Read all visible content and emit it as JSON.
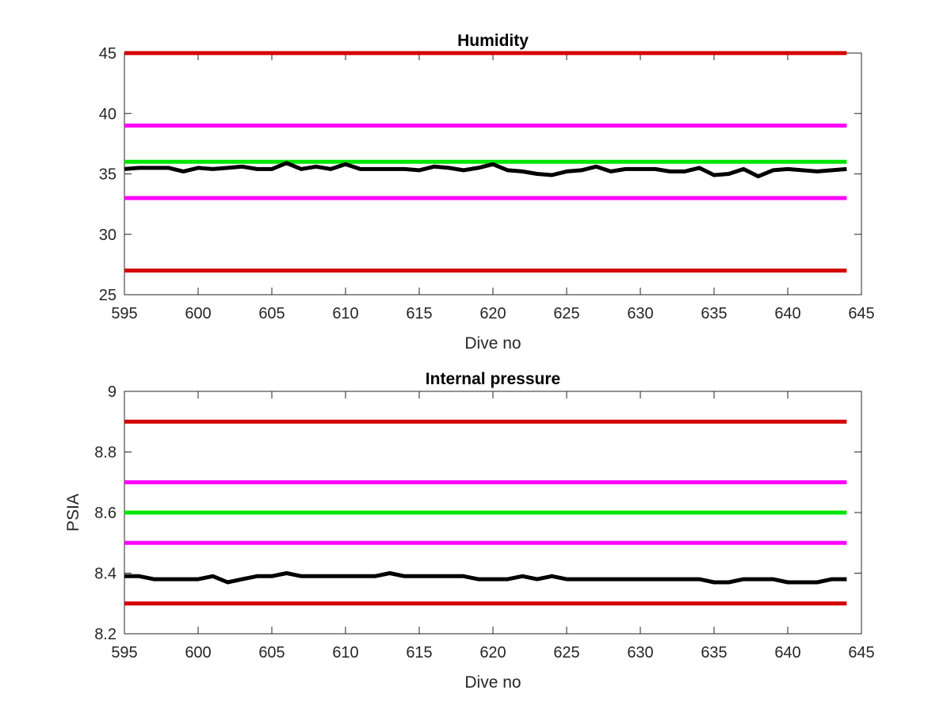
{
  "chart_data": [
    {
      "type": "line",
      "title": "Humidity",
      "xlabel": "Dive no",
      "ylabel": "",
      "xlim": [
        595,
        645
      ],
      "ylim": [
        25,
        45
      ],
      "xticks": [
        595,
        600,
        605,
        610,
        615,
        620,
        625,
        630,
        635,
        640,
        645
      ],
      "yticks": [
        25,
        30,
        35,
        40,
        45
      ],
      "grid": false,
      "reference_lines": [
        {
          "y": 45,
          "color": "#d40000"
        },
        {
          "y": 39,
          "color": "#ff00ff"
        },
        {
          "y": 36,
          "color": "#00e600"
        },
        {
          "y": 33,
          "color": "#ff00ff"
        },
        {
          "y": 27,
          "color": "#d40000"
        }
      ],
      "series": [
        {
          "color": "#000000",
          "x": [
            595,
            596,
            597,
            598,
            599,
            600,
            601,
            602,
            603,
            604,
            605,
            606,
            607,
            608,
            609,
            610,
            611,
            612,
            613,
            614,
            615,
            616,
            617,
            618,
            619,
            620,
            621,
            622,
            623,
            624,
            625,
            626,
            627,
            628,
            629,
            630,
            631,
            632,
            633,
            634,
            635,
            636,
            637,
            638,
            639,
            640,
            641,
            642,
            643,
            644
          ],
          "values": [
            35.4,
            35.5,
            35.5,
            35.5,
            35.2,
            35.5,
            35.4,
            35.5,
            35.6,
            35.4,
            35.4,
            35.9,
            35.4,
            35.6,
            35.4,
            35.8,
            35.4,
            35.4,
            35.4,
            35.4,
            35.3,
            35.6,
            35.5,
            35.3,
            35.5,
            35.8,
            35.3,
            35.2,
            35.0,
            34.9,
            35.2,
            35.3,
            35.6,
            35.2,
            35.4,
            35.4,
            35.4,
            35.2,
            35.2,
            35.5,
            34.9,
            35.0,
            35.4,
            34.8,
            35.3,
            35.4,
            35.3,
            35.2,
            35.3,
            35.4
          ]
        }
      ]
    },
    {
      "type": "line",
      "title": "Internal pressure",
      "xlabel": "Dive no",
      "ylabel": "PSIA",
      "xlim": [
        595,
        645
      ],
      "ylim": [
        8.2,
        9
      ],
      "xticks": [
        595,
        600,
        605,
        610,
        615,
        620,
        625,
        630,
        635,
        640,
        645
      ],
      "yticks": [
        8.2,
        8.4,
        8.6,
        8.8,
        9
      ],
      "grid": false,
      "reference_lines": [
        {
          "y": 8.9,
          "color": "#d40000"
        },
        {
          "y": 8.7,
          "color": "#ff00ff"
        },
        {
          "y": 8.6,
          "color": "#00e600"
        },
        {
          "y": 8.5,
          "color": "#ff00ff"
        },
        {
          "y": 8.3,
          "color": "#d40000"
        }
      ],
      "series": [
        {
          "color": "#000000",
          "x": [
            595,
            596,
            597,
            598,
            599,
            600,
            601,
            602,
            603,
            604,
            605,
            606,
            607,
            608,
            609,
            610,
            611,
            612,
            613,
            614,
            615,
            616,
            617,
            618,
            619,
            620,
            621,
            622,
            623,
            624,
            625,
            626,
            627,
            628,
            629,
            630,
            631,
            632,
            633,
            634,
            635,
            636,
            637,
            638,
            639,
            640,
            641,
            642,
            643,
            644
          ],
          "values": [
            8.39,
            8.39,
            8.38,
            8.38,
            8.38,
            8.38,
            8.39,
            8.37,
            8.38,
            8.39,
            8.39,
            8.4,
            8.39,
            8.39,
            8.39,
            8.39,
            8.39,
            8.39,
            8.4,
            8.39,
            8.39,
            8.39,
            8.39,
            8.39,
            8.38,
            8.38,
            8.38,
            8.39,
            8.38,
            8.39,
            8.38,
            8.38,
            8.38,
            8.38,
            8.38,
            8.38,
            8.38,
            8.38,
            8.38,
            8.38,
            8.37,
            8.37,
            8.38,
            8.38,
            8.38,
            8.37,
            8.37,
            8.37,
            8.38,
            8.38
          ]
        }
      ]
    }
  ]
}
